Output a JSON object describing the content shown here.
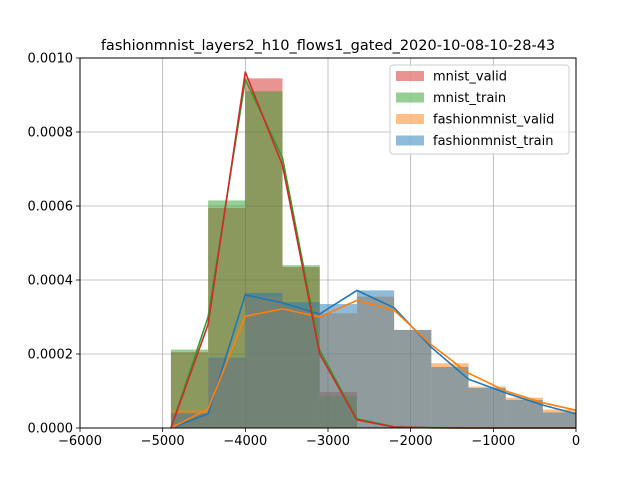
{
  "chart_data": {
    "type": "histogram",
    "title": "fashionmnist_layers2_h10_flows1_gated_2020-10-08-10-28-43",
    "xlabel": "",
    "ylabel": "",
    "xlim": [
      -6000,
      0
    ],
    "ylim": [
      0,
      0.001
    ],
    "x_ticks": [
      "−6000",
      "−5000",
      "−4000",
      "−3000",
      "−2000",
      "−1000",
      "0"
    ],
    "y_ticks": [
      "0.0000",
      "0.0002",
      "0.0004",
      "0.0006",
      "0.0008",
      "0.0010"
    ],
    "grid": true,
    "legend_position": "upper right",
    "bin_edges": [
      -5350,
      -4900,
      -4450,
      -4000,
      -3550,
      -3100,
      -2650,
      -2200,
      -1750,
      -1300,
      -850,
      -400,
      50
    ],
    "series": [
      {
        "name": "mnist_valid",
        "color": "#d62728",
        "bins": [
          -5350,
          -4900,
          -4450,
          -4000,
          -3550,
          -3100,
          -2650,
          -2200,
          -1750,
          -1300,
          -850,
          -400,
          50
        ],
        "values": [
          0.0,
          0.000205,
          0.000595,
          0.000945,
          0.000435,
          9.75e-05,
          2.2e-06,
          8e-07,
          0.0,
          0.0,
          0.0,
          0.0
        ],
        "line_x": [
          -4900,
          -4450,
          -4000,
          -3550,
          -3100,
          -2650,
          -2200,
          -1750,
          -1300,
          -850,
          -400,
          0
        ],
        "line_y": [
          0.0,
          0.00028,
          0.000962,
          0.00071,
          0.0002,
          2.2e-05,
          2.8e-06,
          6e-07,
          0.0,
          0.0,
          0.0,
          0.0
        ]
      },
      {
        "name": "mnist_train",
        "color": "#2ca02c",
        "bins": [
          -5350,
          -4900,
          -4450,
          -4000,
          -3550,
          -3100,
          -2650,
          -2200,
          -1750,
          -1300,
          -850,
          -400,
          50
        ],
        "values": [
          0.0,
          0.000212,
          0.000615,
          0.00091,
          0.00044,
          8.75e-05,
          2.5e-06,
          1e-06,
          0.0,
          0.0,
          0.0,
          0.0
        ],
        "line_x": [
          -4900,
          -4450,
          -4000,
          -3550,
          -3100,
          -2650,
          -2200,
          -1750,
          -1300,
          -850,
          -400,
          0
        ],
        "line_y": [
          0.0,
          0.0003,
          0.000942,
          0.00073,
          0.00021,
          2.5e-05,
          3.2e-06,
          8e-07,
          0.0,
          0.0,
          0.0,
          0.0
        ]
      },
      {
        "name": "fashionmnist_valid",
        "color": "#ff7f0e",
        "bins": [
          -5350,
          -4900,
          -4450,
          -4000,
          -3550,
          -3100,
          -2650,
          -2200,
          -1750,
          -1300,
          -850,
          -400,
          50
        ],
        "values": [
          0.0,
          4.8e-05,
          0.000185,
          0.000355,
          0.000325,
          0.00031,
          0.000355,
          0.000265,
          0.000175,
          0.000112,
          8.2e-05,
          5e-05
        ],
        "line_x": [
          -4900,
          -4450,
          -4000,
          -3550,
          -3100,
          -2650,
          -2200,
          -1750,
          -1300,
          -850,
          -400,
          0
        ],
        "line_y": [
          0.0,
          5.2e-05,
          0.000302,
          0.000322,
          0.0003,
          0.000345,
          0.000318,
          0.000225,
          0.000148,
          0.0001,
          6.8e-05,
          4.8e-05
        ]
      },
      {
        "name": "fashionmnist_train",
        "color": "#1f77b4",
        "bins": [
          -5350,
          -4900,
          -4450,
          -4000,
          -3550,
          -3100,
          -2650,
          -2200,
          -1750,
          -1300,
          -850,
          -400,
          50
        ],
        "values": [
          0.0,
          4e-05,
          0.00019,
          0.000365,
          0.00034,
          0.000335,
          0.000372,
          0.000265,
          0.000165,
          0.000108,
          7.6e-05,
          4.2e-05
        ],
        "line_x": [
          -4900,
          -4450,
          -4000,
          -3550,
          -3100,
          -2650,
          -2200,
          -1750,
          -1300,
          -850,
          -400,
          0
        ],
        "line_y": [
          0.0,
          3.8e-05,
          0.00036,
          0.000338,
          0.000308,
          0.000372,
          0.000325,
          0.000218,
          0.000132,
          9.5e-05,
          6.2e-05,
          3.8e-05
        ]
      }
    ]
  }
}
